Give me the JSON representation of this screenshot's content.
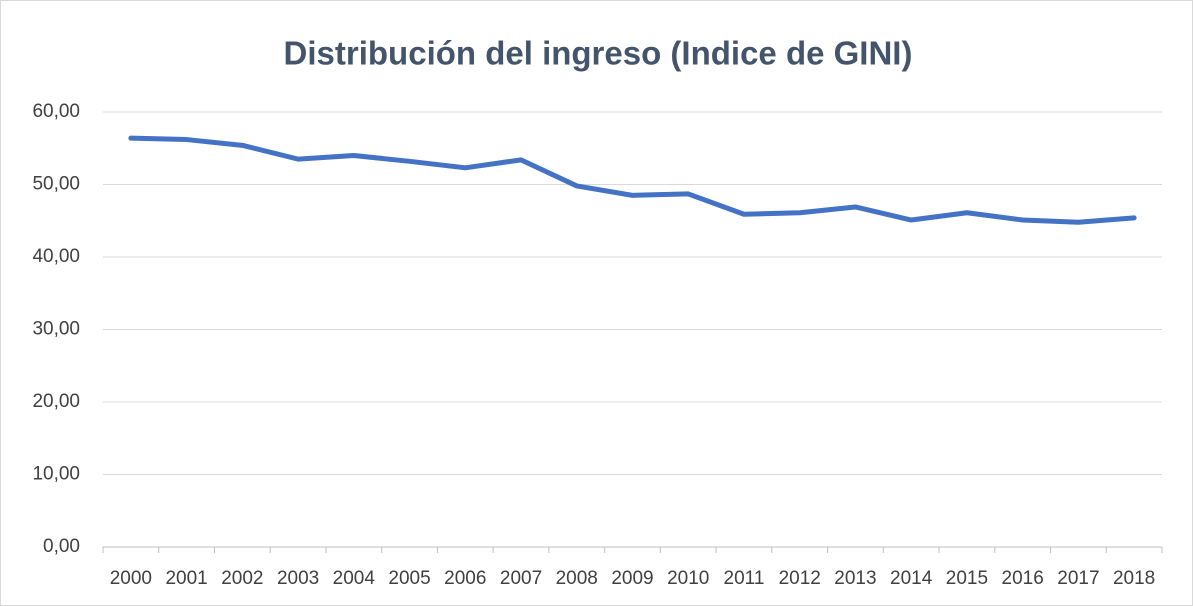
{
  "chart_data": {
    "type": "line",
    "title": "Distribución del ingreso (Indice de GINI)",
    "categories": [
      "2000",
      "2001",
      "2002",
      "2003",
      "2004",
      "2005",
      "2006",
      "2007",
      "2008",
      "2009",
      "2010",
      "2011",
      "2012",
      "2013",
      "2014",
      "2015",
      "2016",
      "2017",
      "2018"
    ],
    "series": [
      {
        "name": "Indice de GINI",
        "color": "#4472c4",
        "values": [
          56.4,
          56.2,
          55.4,
          53.5,
          54.0,
          53.2,
          52.3,
          53.4,
          49.8,
          48.5,
          48.7,
          45.9,
          46.1,
          46.9,
          45.1,
          46.1,
          45.1,
          44.8,
          45.4
        ]
      }
    ],
    "ylim": [
      0,
      60
    ],
    "yticks": [
      {
        "value": 0,
        "label": "0,00"
      },
      {
        "value": 10,
        "label": "10,00"
      },
      {
        "value": 20,
        "label": "20,00"
      },
      {
        "value": 30,
        "label": "30,00"
      },
      {
        "value": 40,
        "label": "40,00"
      },
      {
        "value": 50,
        "label": "50,00"
      },
      {
        "value": 60,
        "label": "60,00"
      }
    ],
    "grid": true
  }
}
